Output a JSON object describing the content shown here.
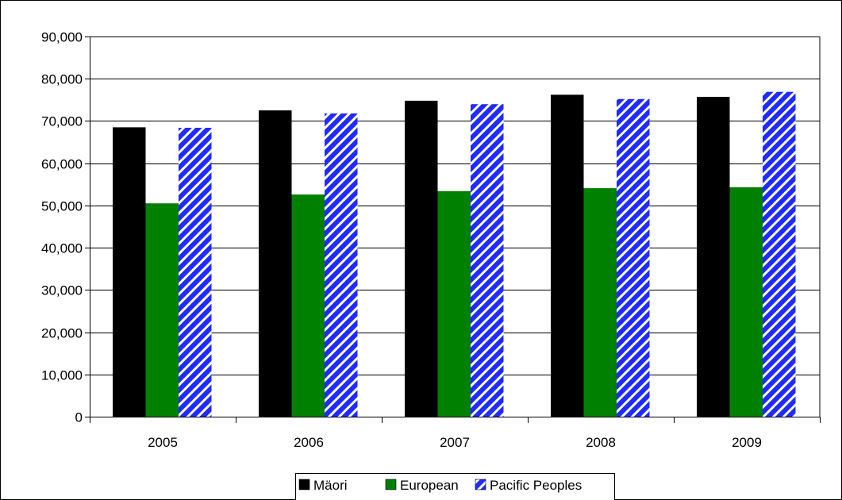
{
  "chart_data": {
    "type": "bar",
    "title": "",
    "xlabel": "",
    "ylabel": "",
    "categories": [
      "2005",
      "2006",
      "2007",
      "2008",
      "2009"
    ],
    "series": [
      {
        "name": "Mäori",
        "values": [
          68500,
          72500,
          74800,
          76200,
          75700
        ],
        "color": "#000000",
        "pattern": "solid"
      },
      {
        "name": "European",
        "values": [
          50500,
          52600,
          53400,
          54100,
          54300
        ],
        "color": "#008000",
        "pattern": "solid"
      },
      {
        "name": "Pacific Peoples",
        "values": [
          68400,
          71800,
          74000,
          75200,
          76900
        ],
        "color": "#1f2bff",
        "pattern": "diagonal-stripes"
      }
    ],
    "ylim": [
      0,
      90000
    ],
    "yticks": [
      0,
      10000,
      20000,
      30000,
      40000,
      50000,
      60000,
      70000,
      80000,
      90000
    ],
    "ytick_labels": [
      "0",
      "10,000",
      "20,000",
      "30,000",
      "40,000",
      "50,000",
      "60,000",
      "70,000",
      "80,000",
      "90,000"
    ],
    "grid": true,
    "legend_position": "bottom-center"
  }
}
